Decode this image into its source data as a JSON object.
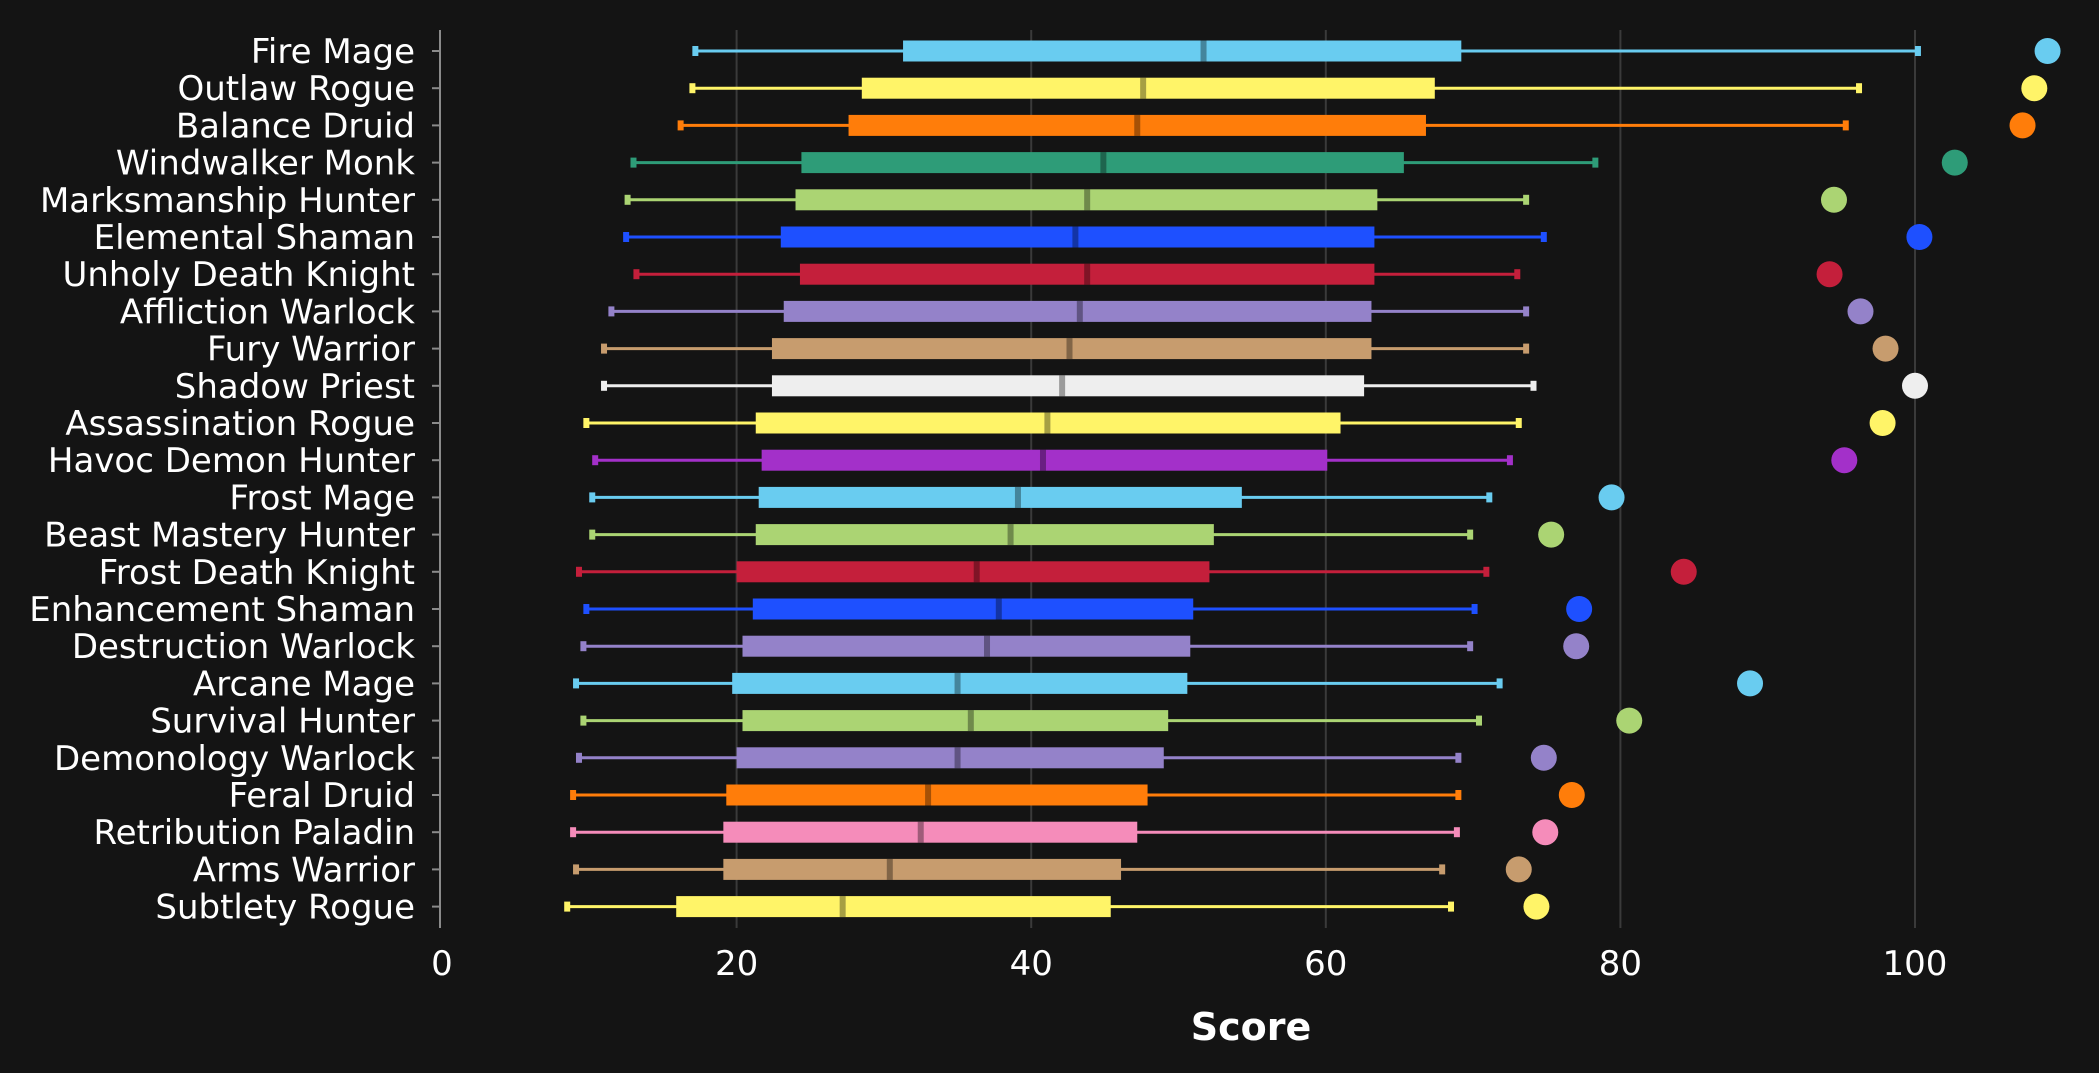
{
  "chart_data": {
    "type": "box",
    "xlabel": "Score",
    "xlim": [
      0,
      113
    ],
    "x_ticks": [
      "0",
      "20",
      "40",
      "60",
      "80",
      "100"
    ],
    "grid": true,
    "series": [
      {
        "name": "Fire Mage",
        "color": "#69ccf0",
        "min": 17.2,
        "q1": 31.3,
        "median": 51.7,
        "q3": 69.2,
        "max": 100.2,
        "top": 109.0
      },
      {
        "name": "Outlaw Rogue",
        "color": "#fff468",
        "min": 17.0,
        "q1": 28.5,
        "median": 47.6,
        "q3": 67.4,
        "max": 96.2,
        "top": 108.1
      },
      {
        "name": "Balance Druid",
        "color": "#ff7d0a",
        "min": 16.2,
        "q1": 27.6,
        "median": 47.2,
        "q3": 66.8,
        "max": 95.3,
        "top": 107.3
      },
      {
        "name": "Windwalker Monk",
        "color": "#2e9c78",
        "min": 13.0,
        "q1": 24.4,
        "median": 44.9,
        "q3": 65.3,
        "max": 78.3,
        "top": 102.7
      },
      {
        "name": "Marksmanship Hunter",
        "color": "#abd473",
        "min": 12.6,
        "q1": 24.0,
        "median": 43.8,
        "q3": 63.5,
        "max": 73.6,
        "top": 94.5
      },
      {
        "name": "Elemental Shaman",
        "color": "#1e50ff",
        "min": 12.5,
        "q1": 23.0,
        "median": 43.0,
        "q3": 63.3,
        "max": 74.8,
        "top": 100.3
      },
      {
        "name": "Unholy Death Knight",
        "color": "#c41f3b",
        "min": 13.2,
        "q1": 24.3,
        "median": 43.8,
        "q3": 63.3,
        "max": 73.0,
        "top": 94.2
      },
      {
        "name": "Affliction Warlock",
        "color": "#9482c9",
        "min": 11.5,
        "q1": 23.2,
        "median": 43.3,
        "q3": 63.1,
        "max": 73.6,
        "top": 96.3
      },
      {
        "name": "Fury Warrior",
        "color": "#c79c6e",
        "min": 11.0,
        "q1": 22.4,
        "median": 42.6,
        "q3": 63.1,
        "max": 73.6,
        "top": 98.0
      },
      {
        "name": "Shadow Priest",
        "color": "#eeeeee",
        "min": 11.0,
        "q1": 22.4,
        "median": 42.1,
        "q3": 62.6,
        "max": 74.1,
        "top": 100.0
      },
      {
        "name": "Assassination Rogue",
        "color": "#fff468",
        "min": 9.8,
        "q1": 21.3,
        "median": 41.1,
        "q3": 61.0,
        "max": 73.1,
        "top": 97.8
      },
      {
        "name": "Havoc Demon Hunter",
        "color": "#a330c9",
        "min": 10.4,
        "q1": 21.7,
        "median": 40.8,
        "q3": 60.1,
        "max": 72.5,
        "top": 95.2
      },
      {
        "name": "Frost Mage",
        "color": "#69ccf0",
        "min": 10.2,
        "q1": 21.5,
        "median": 39.1,
        "q3": 54.3,
        "max": 71.1,
        "top": 79.4
      },
      {
        "name": "Beast Mastery Hunter",
        "color": "#abd473",
        "min": 10.2,
        "q1": 21.3,
        "median": 38.6,
        "q3": 52.4,
        "max": 69.8,
        "top": 75.3
      },
      {
        "name": "Frost Death Knight",
        "color": "#c41f3b",
        "min": 9.3,
        "q1": 20.0,
        "median": 36.3,
        "q3": 52.1,
        "max": 70.9,
        "top": 84.3
      },
      {
        "name": "Enhancement Shaman",
        "color": "#1e50ff",
        "min": 9.8,
        "q1": 21.1,
        "median": 37.8,
        "q3": 51.0,
        "max": 70.1,
        "top": 77.2
      },
      {
        "name": "Destruction Warlock",
        "color": "#9482c9",
        "min": 9.6,
        "q1": 20.4,
        "median": 37.0,
        "q3": 50.8,
        "max": 69.8,
        "top": 77.0
      },
      {
        "name": "Arcane Mage",
        "color": "#69ccf0",
        "min": 9.1,
        "q1": 19.7,
        "median": 35.0,
        "q3": 50.6,
        "max": 71.8,
        "top": 88.8
      },
      {
        "name": "Survival Hunter",
        "color": "#abd473",
        "min": 9.6,
        "q1": 20.4,
        "median": 35.9,
        "q3": 49.3,
        "max": 70.4,
        "top": 80.6
      },
      {
        "name": "Demonology Warlock",
        "color": "#9482c9",
        "min": 9.3,
        "q1": 20.0,
        "median": 35.0,
        "q3": 49.0,
        "max": 69.0,
        "top": 74.8
      },
      {
        "name": "Feral Druid",
        "color": "#ff7d0a",
        "min": 8.9,
        "q1": 19.3,
        "median": 33.0,
        "q3": 47.9,
        "max": 69.0,
        "top": 76.7
      },
      {
        "name": "Retribution Paladin",
        "color": "#f58cba",
        "min": 8.9,
        "q1": 19.1,
        "median": 32.5,
        "q3": 47.2,
        "max": 68.9,
        "top": 74.9
      },
      {
        "name": "Arms Warrior",
        "color": "#c79c6e",
        "min": 9.1,
        "q1": 19.1,
        "median": 30.4,
        "q3": 46.1,
        "max": 67.9,
        "top": 73.1
      },
      {
        "name": "Subtlety Rogue",
        "color": "#fff468",
        "min": 8.5,
        "q1": 15.9,
        "median": 27.2,
        "q3": 45.4,
        "max": 68.5,
        "top": 74.3
      }
    ]
  }
}
